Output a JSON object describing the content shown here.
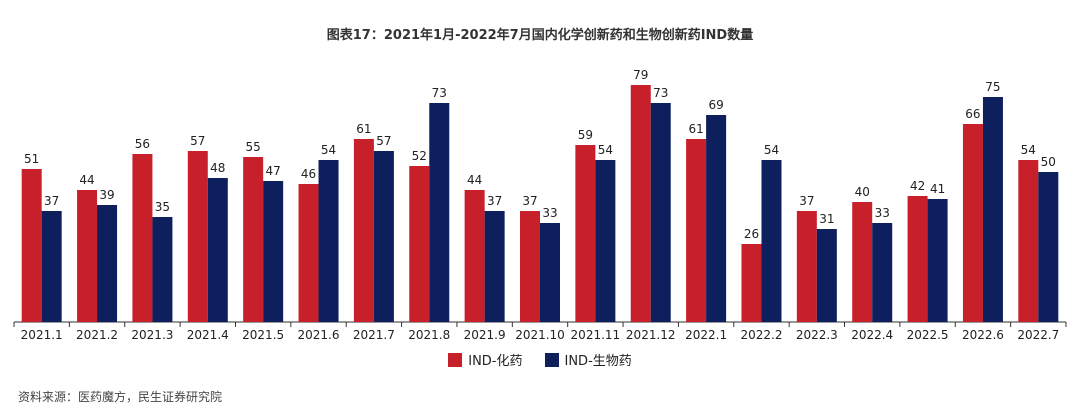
{
  "chart_data": {
    "type": "bar",
    "title": "图表17：2021年1月-2022年7月国内化学创新药和生物创新药IND数量",
    "categories": [
      "2021.1",
      "2021.2",
      "2021.3",
      "2021.4",
      "2021.5",
      "2021.6",
      "2021.7",
      "2021.8",
      "2021.9",
      "2021.10",
      "2021.11",
      "2021.12",
      "2022.1",
      "2022.2",
      "2022.3",
      "2022.4",
      "2022.5",
      "2022.6",
      "2022.7"
    ],
    "series": [
      {
        "name": "IND-化药",
        "color": "#c8202a",
        "values": [
          51,
          44,
          56,
          57,
          55,
          46,
          61,
          52,
          44,
          37,
          59,
          79,
          61,
          26,
          37,
          40,
          42,
          66,
          54
        ]
      },
      {
        "name": "IND-生物药",
        "color": "#0d1f5c",
        "values": [
          37,
          39,
          35,
          48,
          47,
          54,
          57,
          73,
          37,
          33,
          54,
          73,
          69,
          54,
          31,
          33,
          41,
          75,
          50
        ]
      }
    ],
    "xlabel": "",
    "ylabel": "",
    "ylim": [
      0,
      90
    ],
    "grid": false,
    "legend_position": "bottom"
  },
  "source": "资料来源：医药魔方，民生证券研究院"
}
